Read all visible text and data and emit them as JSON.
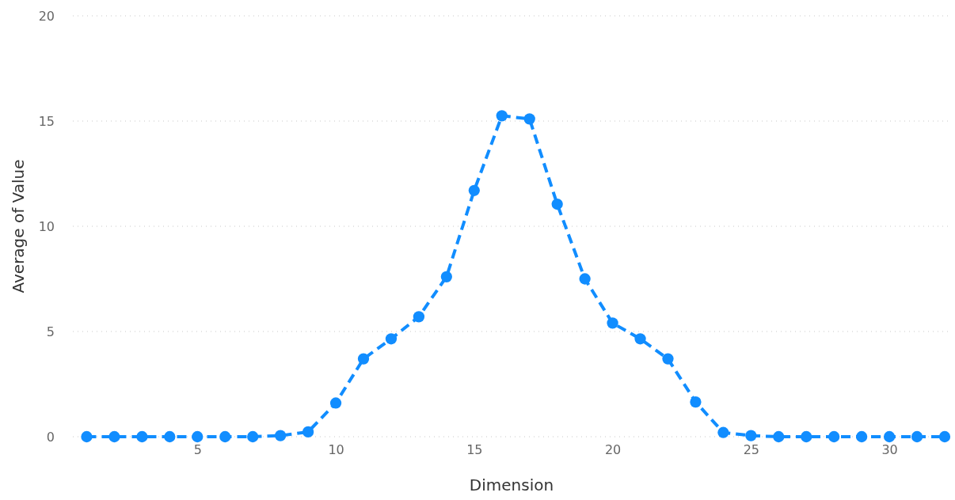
{
  "chart_data": {
    "type": "line",
    "xlabel": "Dimension",
    "ylabel": "Average of Value",
    "x": [
      1,
      2,
      3,
      4,
      5,
      6,
      7,
      8,
      9,
      10,
      11,
      12,
      13,
      14,
      15,
      16,
      17,
      18,
      19,
      20,
      21,
      22,
      23,
      24,
      25,
      26,
      27,
      28,
      29,
      30,
      31,
      32
    ],
    "series": [
      {
        "color": "#118dff",
        "values": [
          0,
          0,
          0,
          0,
          0,
          0,
          0,
          0.05,
          0.23,
          1.6,
          3.7,
          4.65,
          5.7,
          7.6,
          11.7,
          15.25,
          15.1,
          11.05,
          7.5,
          5.4,
          4.65,
          3.7,
          1.65,
          0.2,
          0.05,
          0,
          0,
          0,
          0,
          0,
          0,
          0
        ]
      }
    ],
    "xlim": [
      0.5,
      32.2
    ],
    "xticks": [
      5,
      10,
      15,
      20,
      25,
      30
    ],
    "ylim": [
      0,
      20
    ],
    "yticks": [
      0,
      5,
      10,
      15,
      20
    ],
    "grid": "y",
    "marker": "circle",
    "line_style": "dashed"
  }
}
